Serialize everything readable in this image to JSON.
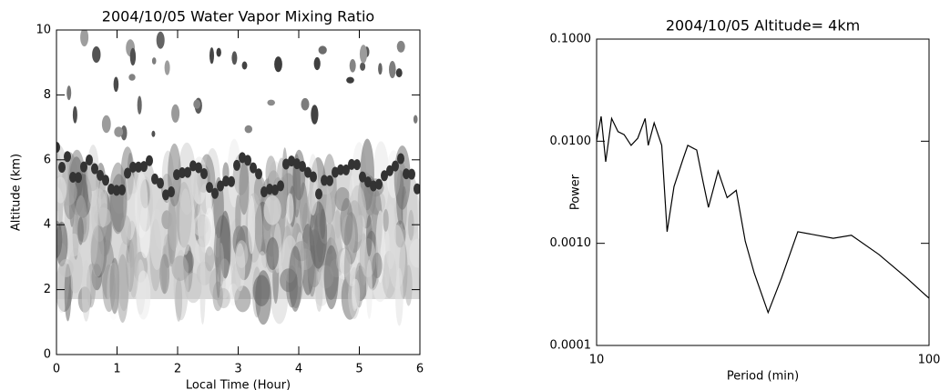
{
  "chart_data": [
    {
      "type": "contour",
      "title": "2004/10/05 Water Vapor Mixing Ratio",
      "x_label": "Local Time (Hour)",
      "y_label": "Altitude (km)",
      "xlim": [
        0,
        6
      ],
      "xticks": [
        0,
        1,
        2,
        3,
        4,
        5,
        6
      ],
      "ylim": [
        0,
        10
      ],
      "yticks": [
        0,
        2,
        4,
        6,
        8,
        10
      ]
    },
    {
      "type": "line",
      "title": "2004/10/05 Altitude=  4km",
      "x_label": "Period (min)",
      "y_label": "Power",
      "xlog": true,
      "ylog": true,
      "color": "#000000",
      "xlim": [
        10,
        100
      ],
      "xticks": [
        10,
        100
      ],
      "ylim": [
        0.0001,
        0.1
      ],
      "yticks": [
        {
          "value": 0.1,
          "label": "0.1000"
        },
        {
          "value": 0.01,
          "label": "0.0100"
        },
        {
          "value": 0.001,
          "label": "0.0010"
        },
        {
          "value": 0.0001,
          "label": "0.0001"
        }
      ],
      "x": [
        10,
        10.32,
        10.65,
        11.1,
        11.6,
        12.1,
        12.7,
        13.3,
        14.0,
        14.3,
        14.9,
        15.7,
        16.3,
        17.1,
        18.2,
        18.8,
        20.0,
        20.9,
        21.7,
        23.2,
        24.7,
        26.3,
        28.0,
        29.8,
        32.8,
        36.0,
        40.3,
        51.5,
        58.4,
        70.6,
        85.5,
        100
      ],
      "values": [
        0.0101,
        0.0175,
        0.0063,
        0.0167,
        0.0124,
        0.0116,
        0.0091,
        0.0107,
        0.0167,
        0.0091,
        0.0151,
        0.0091,
        0.0013,
        0.0036,
        0.0067,
        0.0091,
        0.0082,
        0.004,
        0.00225,
        0.0051,
        0.0028,
        0.0033,
        0.00105,
        0.00051,
        0.00021,
        0.00046,
        0.0013,
        0.00112,
        0.0012,
        0.00078,
        0.00046,
        0.00029
      ]
    }
  ]
}
